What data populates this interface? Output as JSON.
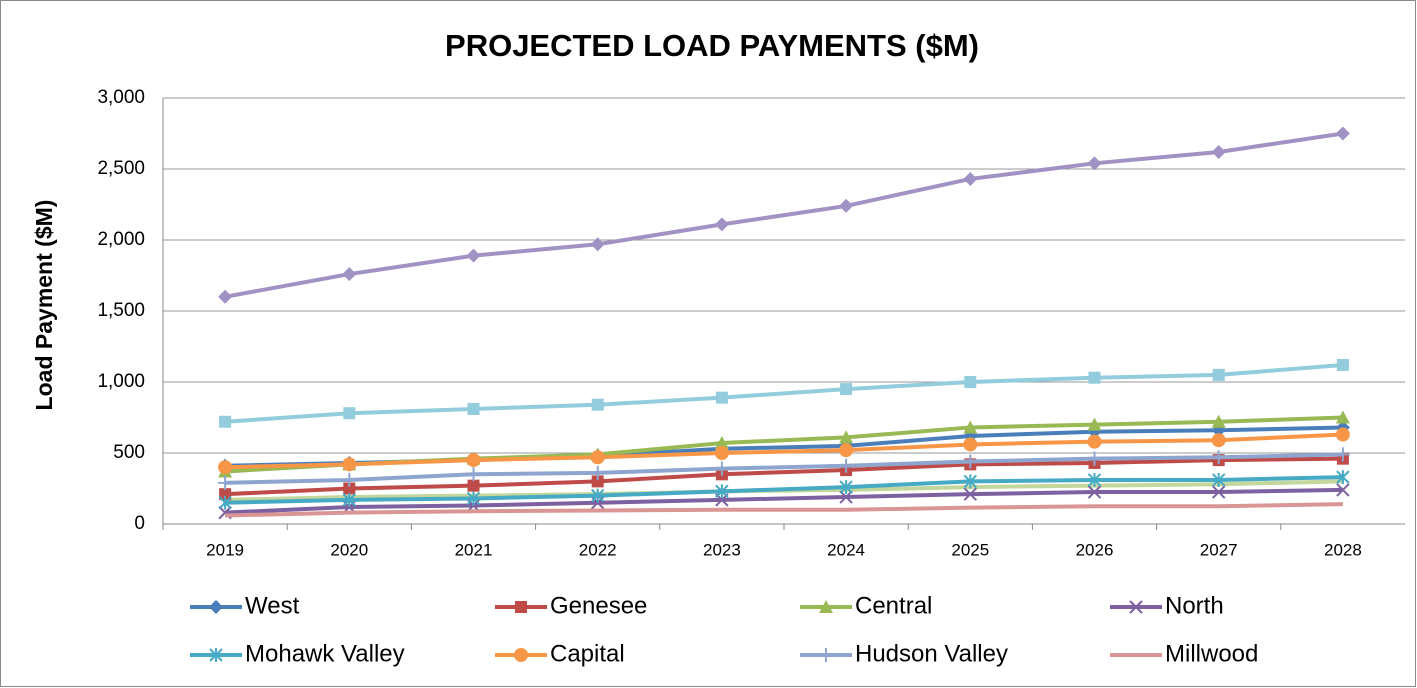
{
  "chart_data": {
    "type": "line",
    "title": "PROJECTED LOAD PAYMENTS ($M)",
    "y_label": "Load Payment ($M)",
    "categories": [
      "2019",
      "2020",
      "2021",
      "2022",
      "2023",
      "2024",
      "2025",
      "2026",
      "2027",
      "2028"
    ],
    "ylim": [
      0,
      3000
    ],
    "yticks": [
      0,
      500,
      {
        "value": 1000,
        "label": "1,000"
      },
      {
        "value": 1500,
        "label": "1,500"
      },
      {
        "value": 2000,
        "label": "2,000"
      },
      {
        "value": 2500,
        "label": "2,500"
      },
      {
        "value": 3000,
        "label": "3,000"
      }
    ],
    "grid": true,
    "legend": "bottom",
    "series": [
      {
        "color": "#a192c4",
        "marker": "diamond",
        "values": [
          1600,
          1760,
          1890,
          1970,
          2110,
          2240,
          2430,
          2540,
          2620,
          2750
        ]
      },
      {
        "color": "#93cddd",
        "marker": "square",
        "values": [
          720,
          780,
          810,
          840,
          890,
          950,
          1000,
          1030,
          1050,
          1120
        ]
      },
      {
        "color": "#c3d69b",
        "marker": "none",
        "values": [
          170,
          190,
          200,
          210,
          230,
          240,
          260,
          270,
          280,
          300
        ]
      },
      {
        "name": "West",
        "color": "#4a7ebb",
        "marker": "diamond",
        "values": [
          410,
          430,
          450,
          480,
          530,
          550,
          620,
          650,
          660,
          680
        ]
      },
      {
        "name": "Genesee",
        "color": "#be4b48",
        "marker": "square",
        "values": [
          210,
          250,
          270,
          300,
          350,
          380,
          420,
          430,
          450,
          460
        ]
      },
      {
        "name": "Central",
        "color": "#98b954",
        "marker": "triangle",
        "values": [
          370,
          420,
          460,
          490,
          570,
          610,
          680,
          700,
          720,
          750
        ]
      },
      {
        "name": "North",
        "color": "#7d60a0",
        "marker": "x",
        "values": [
          80,
          120,
          130,
          150,
          170,
          190,
          210,
          225,
          225,
          240
        ]
      },
      {
        "name": "Mohawk Valley",
        "color": "#46aac5",
        "marker": "star",
        "values": [
          150,
          170,
          180,
          200,
          230,
          260,
          300,
          310,
          310,
          330
        ]
      },
      {
        "name": "Capital",
        "color": "#f79646",
        "marker": "circle",
        "values": [
          400,
          420,
          450,
          470,
          500,
          520,
          560,
          580,
          590,
          630
        ]
      },
      {
        "name": "Hudson Valley",
        "color": "#8ea6cf",
        "marker": "plus",
        "values": [
          290,
          310,
          350,
          360,
          390,
          410,
          440,
          460,
          470,
          490
        ]
      },
      {
        "name": "Millwood",
        "color": "#d99694",
        "marker": "none",
        "values": [
          60,
          80,
          90,
          95,
          100,
          100,
          115,
          125,
          125,
          140
        ]
      }
    ]
  }
}
